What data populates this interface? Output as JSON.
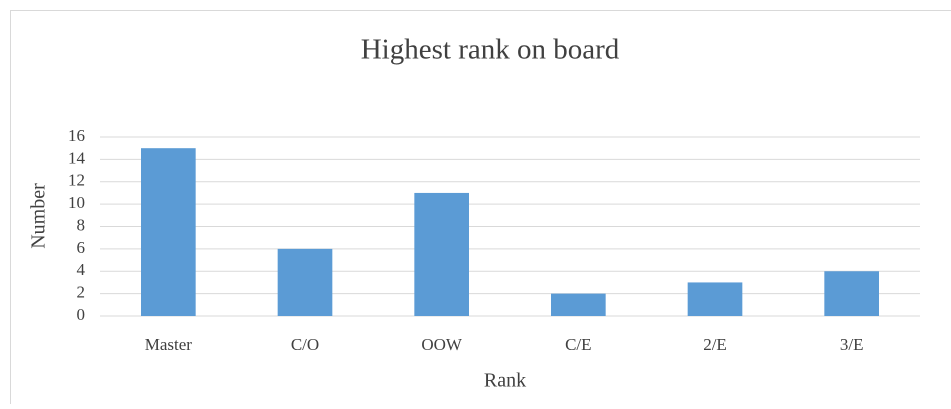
{
  "chart_data": {
    "type": "bar",
    "title": "Highest rank on board",
    "x_label": "Rank",
    "y_label": "Number",
    "categories": [
      "Master",
      "C/O",
      "OOW",
      "C/E",
      "2/E",
      "3/E"
    ],
    "values": [
      15,
      6,
      11,
      2,
      3,
      4
    ],
    "color": "#5b9bd5",
    "ylim": [
      0,
      16
    ],
    "yticks": [
      0,
      2,
      4,
      6,
      8,
      10,
      12,
      14,
      16
    ],
    "grid": true
  }
}
